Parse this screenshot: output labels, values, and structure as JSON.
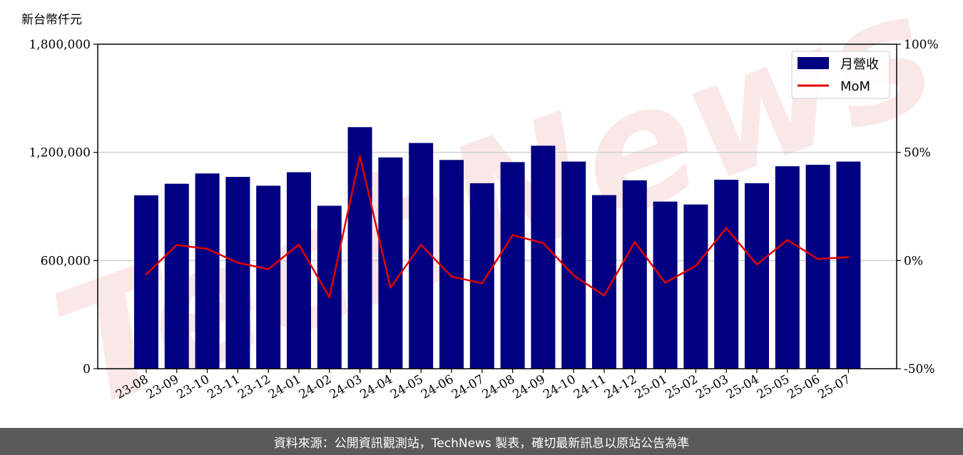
{
  "chart_data": {
    "type": "bar",
    "unit_label": "新台幣仟元",
    "categories": [
      "23-08",
      "23-09",
      "23-10",
      "23-11",
      "23-12",
      "24-01",
      "24-02",
      "24-03",
      "24-04",
      "24-05",
      "24-06",
      "24-07",
      "24-08",
      "24-09",
      "24-10",
      "24-11",
      "24-12",
      "25-01",
      "25-02",
      "25-03",
      "25-04",
      "25-05",
      "25-06",
      "25-07"
    ],
    "series": [
      {
        "name": "月營收",
        "type": "bar",
        "axis": "left",
        "color": "#000080",
        "values": [
          962000,
          1026000,
          1083000,
          1064000,
          1015000,
          1090000,
          904000,
          1340000,
          1172000,
          1252000,
          1158000,
          1029000,
          1146000,
          1237000,
          1149000,
          963000,
          1045000,
          927000,
          911000,
          1048000,
          1029000,
          1123000,
          1131000,
          1149000
        ]
      },
      {
        "name": "MoM",
        "type": "line",
        "axis": "right",
        "color": "#e00000",
        "values": [
          -6.3,
          7.2,
          5.4,
          -1.0,
          -4.0,
          7.4,
          -17.0,
          48.3,
          -12.5,
          7.3,
          -7.4,
          -10.5,
          11.7,
          8.1,
          -6.9,
          -16.2,
          8.6,
          -10.3,
          -2.4,
          15.0,
          -1.8,
          9.5,
          0.7,
          1.6
        ]
      }
    ],
    "yticks_left": [
      "0",
      "600,000",
      "1,200,000",
      "1,800,000"
    ],
    "ylim_left": [
      0,
      1800000
    ],
    "yticks_right": [
      "-50%",
      "0%",
      "50%",
      "100%"
    ],
    "ylim_right": [
      -50,
      100
    ],
    "grid": "horizontal",
    "legend_position": "top-right"
  },
  "watermark": "TechNews",
  "footer": {
    "text": "資料來源：公開資訊觀測站，TechNews 製表，確切最新訊息以原站公告為準"
  }
}
